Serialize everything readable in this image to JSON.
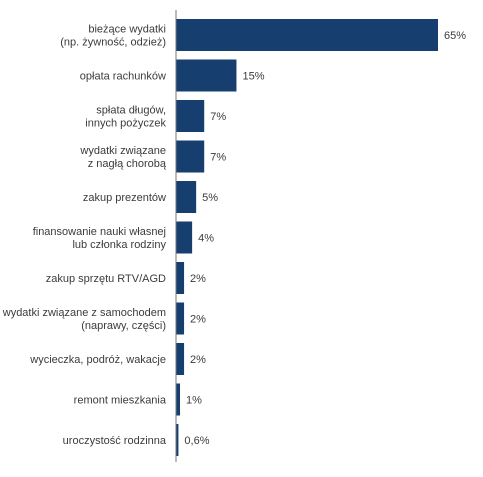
{
  "colors": {
    "bar": "#163e6e",
    "axis": "#777777",
    "text": "#3b3b3b"
  },
  "chart_data": {
    "type": "bar",
    "orientation": "horizontal",
    "categories": [
      [
        "bieżące wydatki",
        "(np. żywność, odzież)"
      ],
      [
        "opłata rachunków"
      ],
      [
        "spłata długów,",
        "innych pożyczek"
      ],
      [
        "wydatki związane",
        "z nagłą chorobą"
      ],
      [
        "zakup prezentów"
      ],
      [
        "finansowanie nauki własnej",
        "lub członka rodziny"
      ],
      [
        "zakup sprzętu RTV/AGD"
      ],
      [
        "wydatki związane z samochodem",
        "(naprawy, części)"
      ],
      [
        "wycieczka, podróż, wakacje"
      ],
      [
        "remont mieszkania"
      ],
      [
        "uroczystość rodzinna"
      ]
    ],
    "values": [
      65,
      15,
      7,
      7,
      5,
      4,
      2,
      2,
      2,
      1,
      0.6
    ],
    "value_labels": [
      "65%",
      "15%",
      "7%",
      "7%",
      "5%",
      "4%",
      "2%",
      "2%",
      "2%",
      "1%",
      "0,6%"
    ],
    "xlim": [
      0,
      65
    ],
    "grid": false,
    "legend": "none"
  }
}
